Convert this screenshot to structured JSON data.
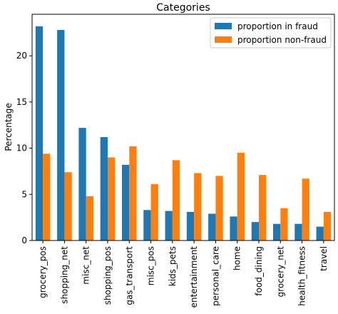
{
  "chart_data": {
    "type": "bar",
    "title": "Categories",
    "xlabel": "",
    "ylabel": "Percentage",
    "ylim": [
      0,
      24.5
    ],
    "yticks": [
      0,
      5,
      10,
      15,
      20
    ],
    "categories": [
      "grocery_pos",
      "shopping_net",
      "misc_net",
      "shopping_pos",
      "gas_transport",
      "misc_pos",
      "kids_pets",
      "entertainment",
      "personal_care",
      "home",
      "food_dining",
      "grocery_net",
      "health_fitness",
      "travel"
    ],
    "series": [
      {
        "name": "proportion in fraud",
        "color": "#1f77b4",
        "values": [
          23.2,
          22.8,
          12.2,
          11.2,
          8.2,
          3.3,
          3.2,
          3.1,
          2.9,
          2.6,
          2.0,
          1.8,
          1.8,
          1.5
        ]
      },
      {
        "name": "proportion non-fraud",
        "color": "#ff7f0e",
        "values": [
          9.4,
          7.4,
          4.8,
          9.0,
          10.2,
          6.1,
          8.7,
          7.3,
          7.0,
          9.5,
          7.1,
          3.5,
          6.7,
          3.1
        ]
      }
    ],
    "legend_position": "top-right",
    "grid": false
  }
}
